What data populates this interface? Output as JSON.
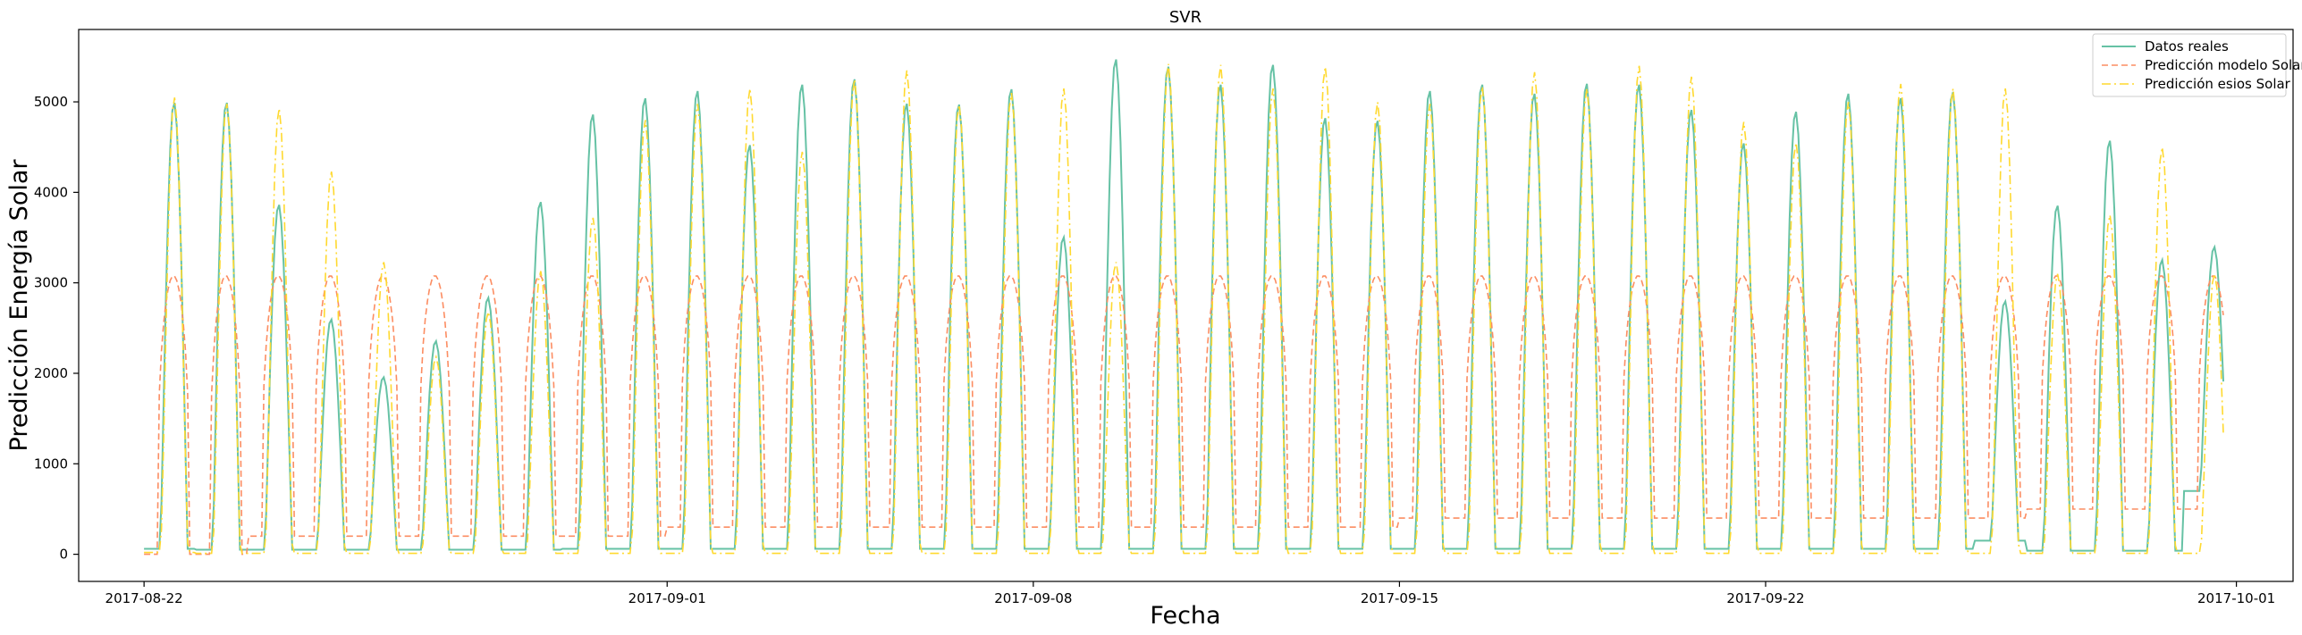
{
  "chart_data": {
    "type": "line",
    "title": "SVR",
    "xlabel": "Fecha",
    "ylabel": "Predicción Energía Solar",
    "x_start": "2017-08-22T00:00",
    "x_end": "2017-09-30T18:00",
    "xlim": [
      "2017-08-20T18:00",
      "2017-10-02T02:00"
    ],
    "ylim": [
      -300,
      5800
    ],
    "x_ticks": [
      {
        "value": "2017-08-22",
        "label": "2017-08-22"
      },
      {
        "value": "2017-09-01",
        "label": "2017-09-01"
      },
      {
        "value": "2017-09-08",
        "label": "2017-09-08"
      },
      {
        "value": "2017-09-15",
        "label": "2017-09-15"
      },
      {
        "value": "2017-09-22",
        "label": "2017-09-22"
      },
      {
        "value": "2017-10-01",
        "label": "2017-10-01"
      }
    ],
    "y_ticks": [
      0,
      1000,
      2000,
      3000,
      4000,
      5000
    ],
    "grid": false,
    "legend_position": "top-right",
    "series": [
      {
        "name": "Datos reales",
        "color": "#66c2a5",
        "style": "solid",
        "daily_peaks": [
          5000,
          5000,
          3870,
          2600,
          1960,
          2360,
          2840,
          3900,
          4870,
          5050,
          5130,
          4530,
          5200,
          5260,
          4990,
          4980,
          5150,
          3510,
          5480,
          5400,
          5200,
          5420,
          4830,
          4800,
          5130,
          5200,
          5100,
          5210,
          5200,
          4920,
          4550,
          4900,
          5100,
          5050,
          5120,
          2800,
          3860,
          4580,
          3260,
          3400
        ],
        "daily_night_min": [
          60,
          50,
          50,
          50,
          50,
          50,
          50,
          50,
          60,
          60,
          60,
          60,
          60,
          60,
          60,
          60,
          60,
          60,
          60,
          60,
          60,
          60,
          60,
          60,
          60,
          60,
          60,
          60,
          60,
          60,
          60,
          60,
          60,
          60,
          60,
          150,
          40,
          40,
          40,
          700
        ]
      },
      {
        "name": "Predicción modelo Solar",
        "color": "#fc8d62",
        "style": "dashed",
        "daily_peaks": [
          3080,
          3080,
          3080,
          3080,
          3080,
          3080,
          3080,
          3080,
          3080,
          3080,
          3080,
          3080,
          3080,
          3080,
          3080,
          3080,
          3080,
          3080,
          3080,
          3080,
          3080,
          3080,
          3080,
          3080,
          3080,
          3080,
          3080,
          3080,
          3080,
          3080,
          3080,
          3080,
          3080,
          3080,
          3080,
          3080,
          3080,
          3080,
          3080,
          3080
        ],
        "daily_night_min": [
          0,
          0,
          200,
          200,
          200,
          200,
          200,
          200,
          200,
          200,
          300,
          300,
          300,
          300,
          300,
          300,
          300,
          300,
          300,
          300,
          300,
          300,
          300,
          300,
          400,
          400,
          400,
          400,
          400,
          400,
          400,
          400,
          400,
          400,
          400,
          400,
          500,
          500,
          500,
          500
        ]
      },
      {
        "name": "Predicción esios Solar",
        "color": "#ffd92f",
        "style": "dashdot",
        "daily_peaks": [
          5050,
          4980,
          4930,
          4230,
          3230,
          2180,
          2680,
          3130,
          3720,
          4800,
          4980,
          5150,
          4450,
          5250,
          5350,
          4970,
          5100,
          5150,
          3230,
          5420,
          5410,
          5150,
          5390,
          5000,
          4980,
          5170,
          5330,
          5150,
          5400,
          5280,
          4780,
          4550,
          5000,
          5200,
          5150,
          5150,
          3100,
          3750,
          4500,
          3100
        ],
        "daily_night_min": [
          20,
          10,
          10,
          10,
          10,
          10,
          10,
          10,
          10,
          10,
          10,
          10,
          10,
          10,
          10,
          10,
          10,
          10,
          10,
          10,
          10,
          10,
          10,
          10,
          10,
          10,
          10,
          10,
          10,
          10,
          10,
          10,
          10,
          10,
          10,
          10,
          10,
          10,
          10,
          10
        ]
      }
    ]
  }
}
